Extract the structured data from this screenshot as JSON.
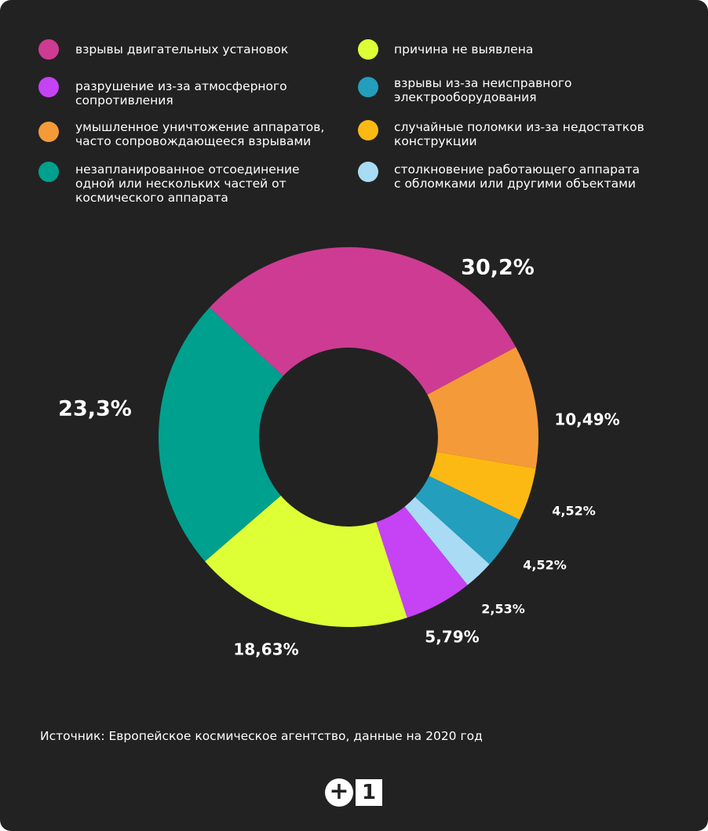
{
  "legend": [
    {
      "label": "взрывы двигательных установок",
      "color": "#CE3B93"
    },
    {
      "label": "причина не выявлена",
      "color": "#DEFF36"
    },
    {
      "label": "разрушение из-за атмосферного\nсопротивления",
      "color": "#C542F5"
    },
    {
      "label": "взрывы из-за неисправного\nэлектрооборудования",
      "color": "#239EBD"
    },
    {
      "label": "умышленное уничтожение аппаратов,\nчасто сопровождающееся взрывами",
      "color": "#F59A38"
    },
    {
      "label": "случайные поломки из-за недостатков\nконструкции",
      "color": "#FDB913"
    },
    {
      "label": "незапланированное отсоединение\nодной или нескольких частей от\nкосмического аппарата",
      "color": "#00A08E"
    },
    {
      "label": "столкновение работающего аппарата\nс обломками или другими объектами",
      "color": "#A9DBF5"
    }
  ],
  "chart_data": {
    "type": "pie",
    "variant": "donut",
    "slices": [
      {
        "label": "взрывы двигательных установок",
        "value": 30.2,
        "text": "30,2%",
        "color": "#CE3B93"
      },
      {
        "label": "умышленное уничтожение аппаратов, часто сопровождающееся взрывами",
        "value": 10.49,
        "text": "10,49%",
        "color": "#F59A38"
      },
      {
        "label": "случайные поломки из-за недостатков конструкции",
        "value": 4.52,
        "text": "4,52%",
        "color": "#FDB913"
      },
      {
        "label": "взрывы из-за неисправного электрооборудования",
        "value": 4.52,
        "text": "4,52%",
        "color": "#239EBD"
      },
      {
        "label": "столкновение работающего аппарата с обломками или другими объектами",
        "value": 2.53,
        "text": "2,53%",
        "color": "#A9DBF5"
      },
      {
        "label": "разрушение из-за атмосферного сопротивления",
        "value": 5.79,
        "text": "5,79%",
        "color": "#C542F5"
      },
      {
        "label": "причина не выявлена",
        "value": 18.63,
        "text": "18,63%",
        "color": "#DEFF36"
      },
      {
        "label": "незапланированное отсоединение одной или нескольких частей от космического аппарата",
        "value": 23.3,
        "text": "23,3%",
        "color": "#00A08E"
      }
    ]
  },
  "source": "Источник: Европейское космическое агентство, данные на 2020 год",
  "logo": {
    "plus": "+",
    "one": "1"
  }
}
